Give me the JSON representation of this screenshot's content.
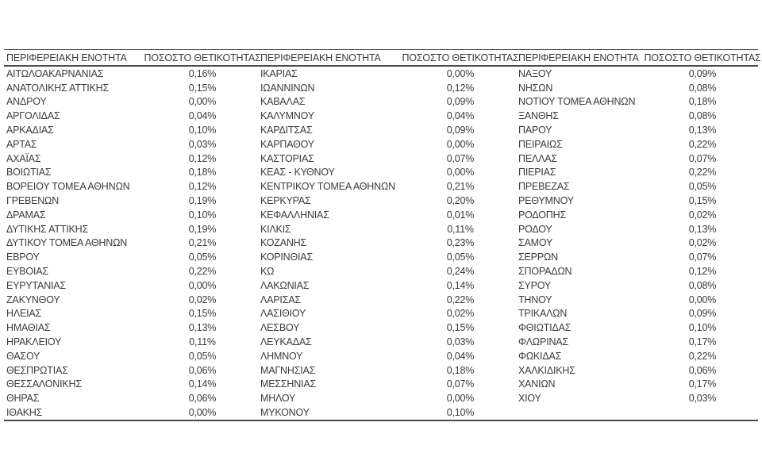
{
  "table": {
    "name_header": "ΠΕΡΙΦΕΡΕΙΑΚΗ ΕΝΟΤΗΤΑ",
    "value_header": "ΠΟΣΟΣΤΟ ΘΕΤΙΚΟΤΗΤΑΣ",
    "columns": [
      {
        "rows": [
          {
            "name": "ΑΙΤΩΛΟΑΚΑΡΝΑΝΙΑΣ",
            "value": "0,16%"
          },
          {
            "name": "ΑΝΑΤΟΛΙΚΗΣ ΑΤΤΙΚΗΣ",
            "value": "0,15%"
          },
          {
            "name": "ΑΝΔΡΟΥ",
            "value": "0,00%"
          },
          {
            "name": "ΑΡΓΟΛΙΔΑΣ",
            "value": "0,04%"
          },
          {
            "name": "ΑΡΚΑΔΙΑΣ",
            "value": "0,10%"
          },
          {
            "name": "ΑΡΤΑΣ",
            "value": "0,03%"
          },
          {
            "name": "ΑΧΑΪΑΣ",
            "value": "0,12%"
          },
          {
            "name": "ΒΟΙΩΤΙΑΣ",
            "value": "0,18%"
          },
          {
            "name": "ΒΟΡΕΙΟΥ ΤΟΜΕΑ ΑΘΗΝΩΝ",
            "value": "0,12%"
          },
          {
            "name": "ΓΡΕΒΕΝΩΝ",
            "value": "0,19%"
          },
          {
            "name": "ΔΡΑΜΑΣ",
            "value": "0,10%"
          },
          {
            "name": "ΔΥΤΙΚΗΣ ΑΤΤΙΚΗΣ",
            "value": "0,19%"
          },
          {
            "name": "ΔΥΤΙΚΟΥ ΤΟΜΕΑ ΑΘΗΝΩΝ",
            "value": "0,21%"
          },
          {
            "name": "ΕΒΡΟΥ",
            "value": "0,05%"
          },
          {
            "name": "ΕΥΒΟΙΑΣ",
            "value": "0,22%"
          },
          {
            "name": "ΕΥΡΥΤΑΝΙΑΣ",
            "value": "0,00%"
          },
          {
            "name": "ΖΑΚΥΝΘΟΥ",
            "value": "0,02%"
          },
          {
            "name": "ΗΛΕΙΑΣ",
            "value": "0,15%"
          },
          {
            "name": "ΗΜΑΘΙΑΣ",
            "value": "0,13%"
          },
          {
            "name": "ΗΡΑΚΛΕΙΟΥ",
            "value": "0,11%"
          },
          {
            "name": "ΘΑΣΟΥ",
            "value": "0,05%"
          },
          {
            "name": "ΘΕΣΠΡΩΤΙΑΣ",
            "value": "0,06%"
          },
          {
            "name": "ΘΕΣΣΑΛΟΝΙΚΗΣ",
            "value": "0,14%"
          },
          {
            "name": "ΘΗΡΑΣ",
            "value": "0,06%"
          },
          {
            "name": "ΙΘΑΚΗΣ",
            "value": "0,00%"
          }
        ]
      },
      {
        "rows": [
          {
            "name": "ΙΚΑΡΙΑΣ",
            "value": "0,00%"
          },
          {
            "name": "ΙΩΑΝΝΙΝΩΝ",
            "value": "0,12%"
          },
          {
            "name": "ΚΑΒΑΛΑΣ",
            "value": "0,09%"
          },
          {
            "name": "ΚΑΛΥΜΝΟΥ",
            "value": "0,04%"
          },
          {
            "name": "ΚΑΡΔΙΤΣΑΣ",
            "value": "0,09%"
          },
          {
            "name": "ΚΑΡΠΑΘΟΥ",
            "value": "0,00%"
          },
          {
            "name": "ΚΑΣΤΟΡΙΑΣ",
            "value": "0,07%"
          },
          {
            "name": "ΚΕΑΣ - ΚΥΘΝΟΥ",
            "value": "0,00%"
          },
          {
            "name": "ΚΕΝΤΡΙΚΟΥ ΤΟΜΕΑ ΑΘΗΝΩΝ",
            "value": "0,21%"
          },
          {
            "name": "ΚΕΡΚΥΡΑΣ",
            "value": "0,20%"
          },
          {
            "name": "ΚΕΦΑΛΛΗΝΙΑΣ",
            "value": "0,01%"
          },
          {
            "name": "ΚΙΛΚΙΣ",
            "value": "0,11%"
          },
          {
            "name": "ΚΟΖΑΝΗΣ",
            "value": "0,23%"
          },
          {
            "name": "ΚΟΡΙΝΘΙΑΣ",
            "value": "0,05%"
          },
          {
            "name": "ΚΩ",
            "value": "0,24%"
          },
          {
            "name": "ΛΑΚΩΝΙΑΣ",
            "value": "0,14%"
          },
          {
            "name": "ΛΑΡΙΣΑΣ",
            "value": "0,22%"
          },
          {
            "name": "ΛΑΣΙΘΙΟΥ",
            "value": "0,02%"
          },
          {
            "name": "ΛΕΣΒΟΥ",
            "value": "0,15%"
          },
          {
            "name": "ΛΕΥΚΑΔΑΣ",
            "value": "0,03%"
          },
          {
            "name": "ΛΗΜΝΟΥ",
            "value": "0,04%"
          },
          {
            "name": "ΜΑΓΝΗΣΙΑΣ",
            "value": "0,18%"
          },
          {
            "name": "ΜΕΣΣΗΝΙΑΣ",
            "value": "0,07%"
          },
          {
            "name": "ΜΗΛΟΥ",
            "value": "0,00%"
          },
          {
            "name": "ΜΥΚΟΝΟΥ",
            "value": "0,10%"
          }
        ]
      },
      {
        "rows": [
          {
            "name": "ΝΑΞΟΥ",
            "value": "0,09%"
          },
          {
            "name": "ΝΗΣΩΝ",
            "value": "0,08%"
          },
          {
            "name": "ΝΟΤΙΟΥ ΤΟΜΕΑ ΑΘΗΝΩΝ",
            "value": "0,18%"
          },
          {
            "name": "ΞΑΝΘΗΣ",
            "value": "0,08%"
          },
          {
            "name": "ΠΑΡΟΥ",
            "value": "0,13%"
          },
          {
            "name": "ΠΕΙΡΑΙΩΣ",
            "value": "0,22%"
          },
          {
            "name": "ΠΕΛΛΑΣ",
            "value": "0,07%"
          },
          {
            "name": "ΠΙΕΡΙΑΣ",
            "value": "0,22%"
          },
          {
            "name": "ΠΡΕΒΕΖΑΣ",
            "value": "0,05%"
          },
          {
            "name": "ΡΕΘΥΜΝΟΥ",
            "value": "0,15%"
          },
          {
            "name": "ΡΟΔΟΠΗΣ",
            "value": "0,02%"
          },
          {
            "name": "ΡΟΔΟΥ",
            "value": "0,13%"
          },
          {
            "name": "ΣΑΜΟΥ",
            "value": "0,02%"
          },
          {
            "name": "ΣΕΡΡΩΝ",
            "value": "0,07%"
          },
          {
            "name": "ΣΠΟΡΑΔΩΝ",
            "value": "0,12%"
          },
          {
            "name": "ΣΥΡΟΥ",
            "value": "0,08%"
          },
          {
            "name": "ΤΗΝΟΥ",
            "value": "0,00%"
          },
          {
            "name": "ΤΡΙΚΑΛΩΝ",
            "value": "0,09%"
          },
          {
            "name": "ΦΘΙΩΤΙΔΑΣ",
            "value": "0,10%"
          },
          {
            "name": "ΦΛΩΡΙΝΑΣ",
            "value": "0,17%"
          },
          {
            "name": "ΦΩΚΙΔΑΣ",
            "value": "0,22%"
          },
          {
            "name": "ΧΑΛΚΙΔΙΚΗΣ",
            "value": "0,06%"
          },
          {
            "name": "ΧΑΝΙΩΝ",
            "value": "0,17%"
          },
          {
            "name": "ΧΙΟΥ",
            "value": "0,03%"
          }
        ]
      }
    ]
  },
  "colors": {
    "text": "#3b3b3b",
    "rule": "#4a4a4a",
    "background": "#ffffff"
  }
}
